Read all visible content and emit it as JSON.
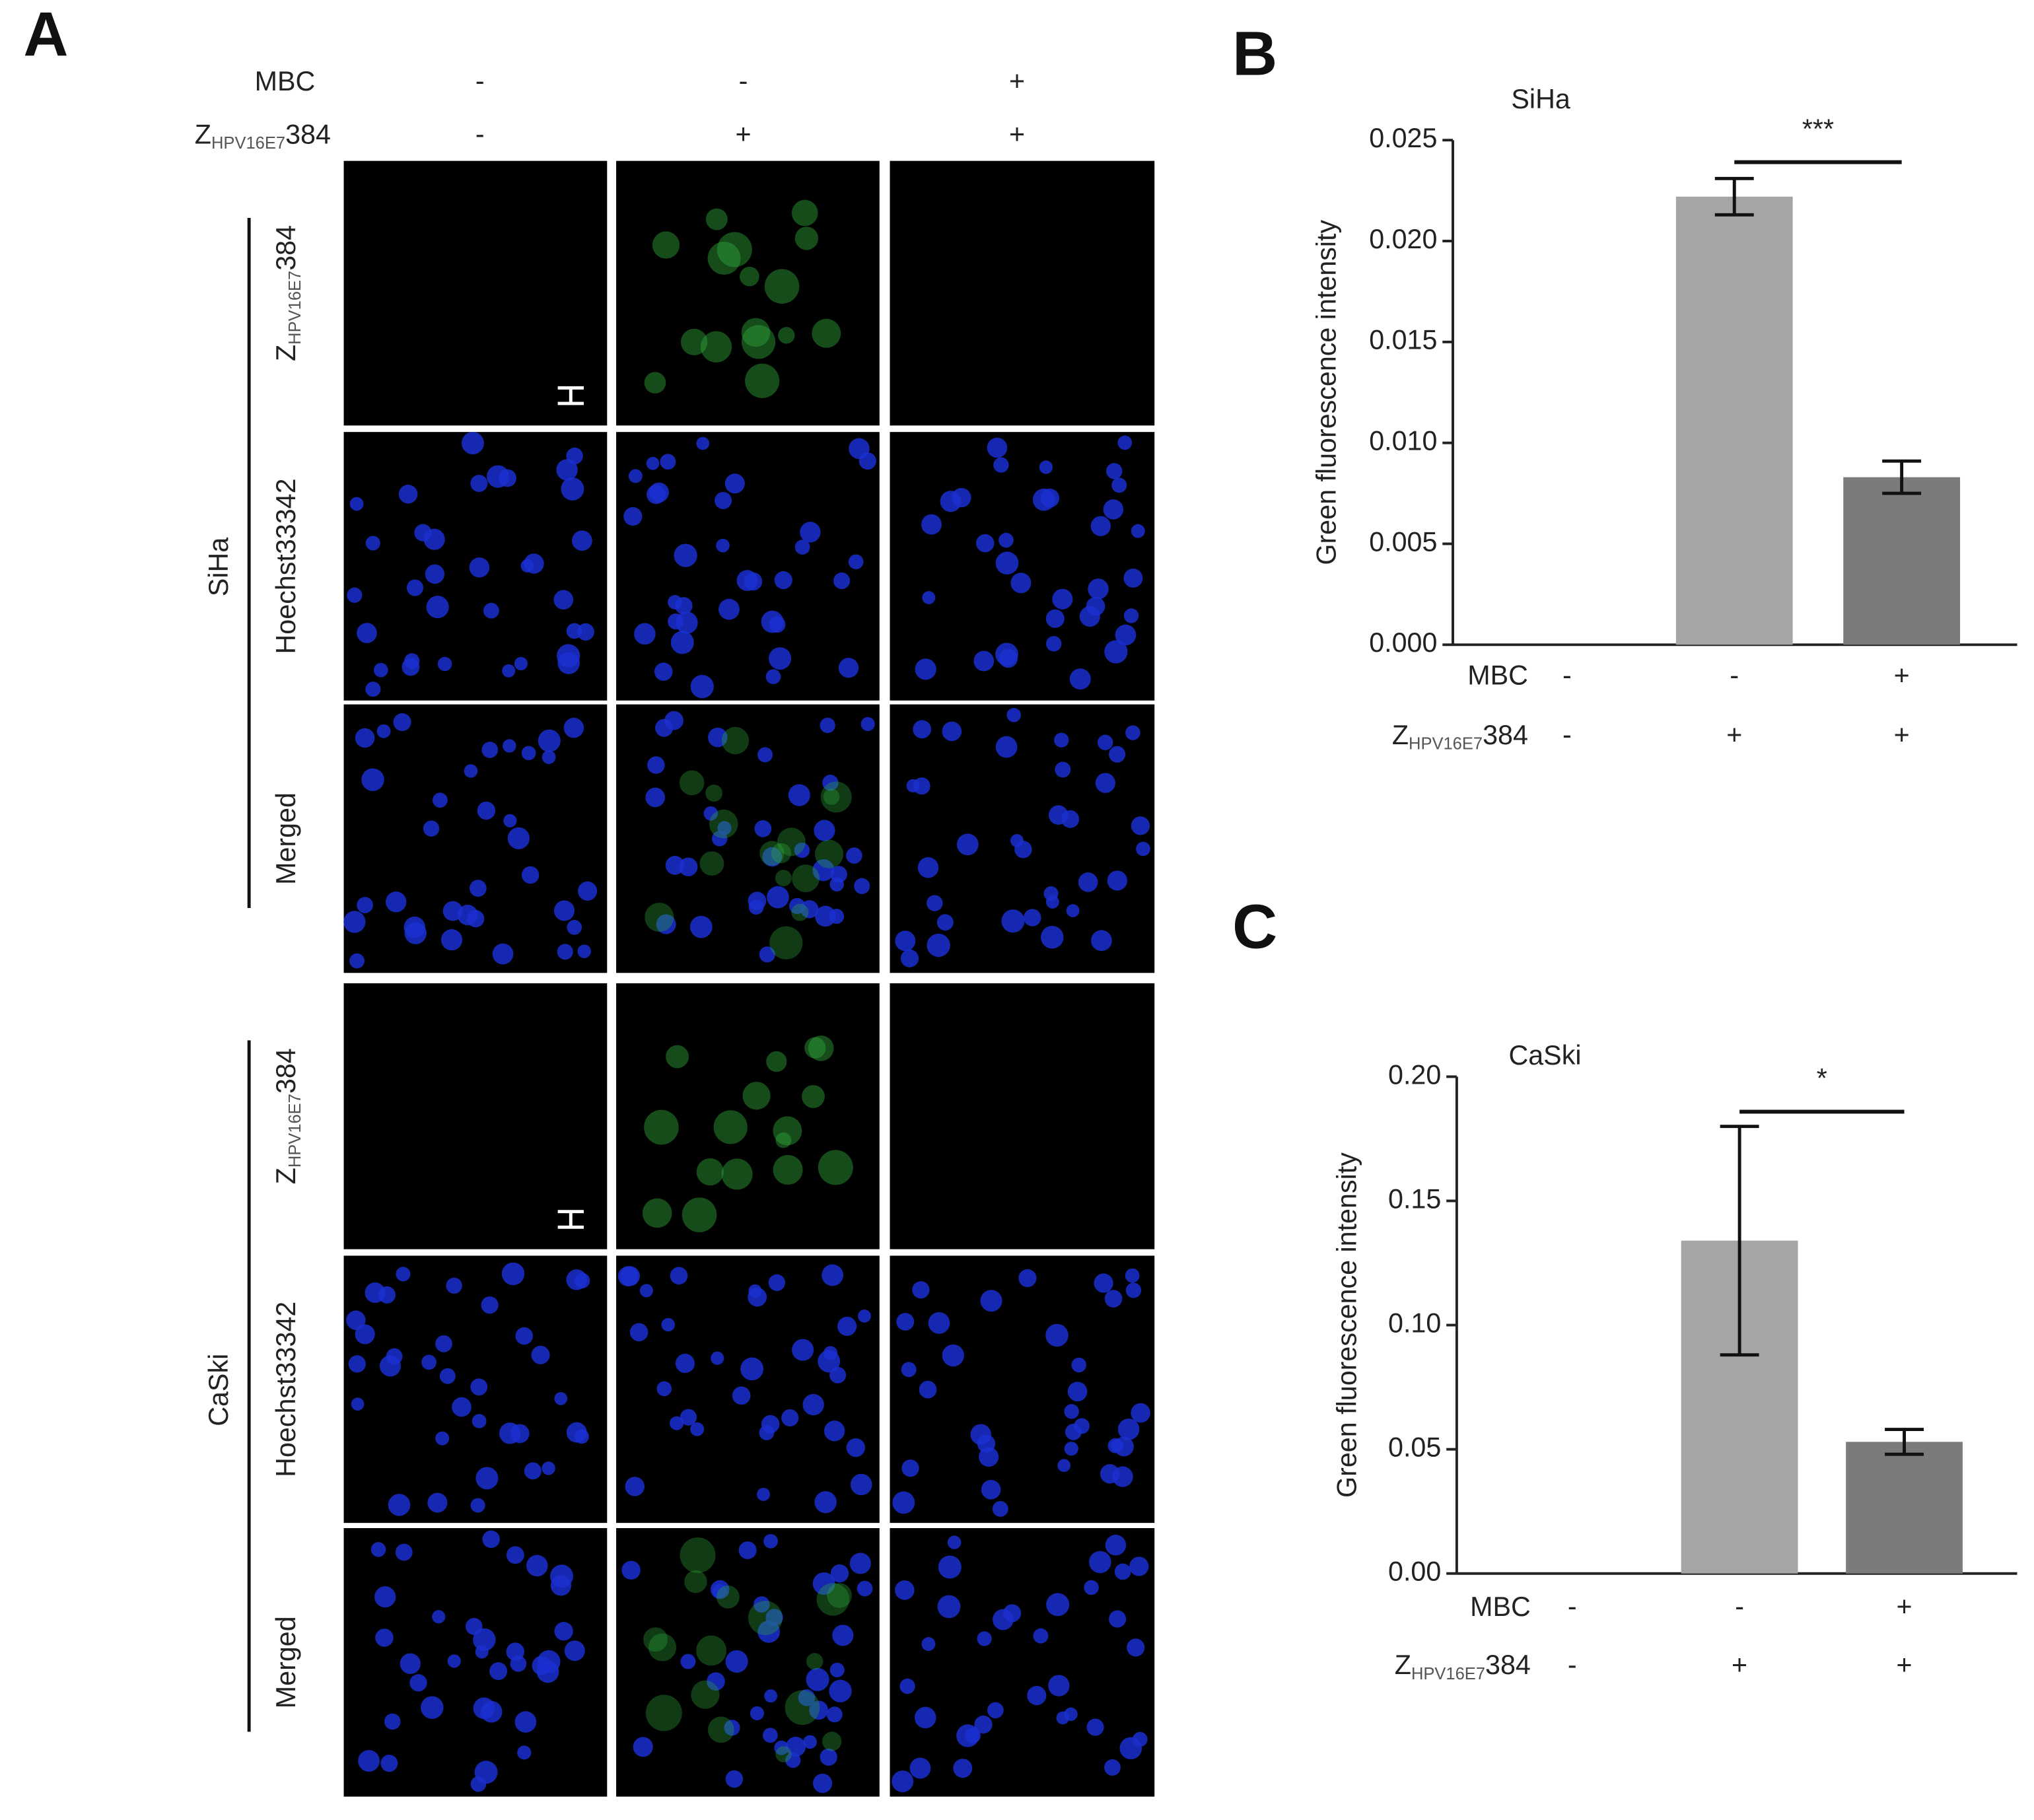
{
  "panel_a": {
    "label": "A",
    "headers": [
      {
        "name": {
          "main": "MBC"
        },
        "signs": [
          "-",
          "-",
          "+"
        ]
      },
      {
        "name": {
          "main": "Z",
          "sub": "HPV16E7",
          "tail": "384"
        },
        "signs": [
          "-",
          "+",
          "+"
        ]
      }
    ],
    "cell_lines": [
      {
        "name": "SiHa",
        "channels": [
          {
            "main": "Z",
            "sub": "HPV16E7",
            "tail": "384"
          },
          {
            "main": "Hoechst33342"
          },
          {
            "main": "Merged"
          }
        ]
      },
      {
        "name": "CaSki",
        "channels": [
          {
            "main": "Z",
            "sub": "HPV16E7",
            "tail": "384"
          },
          {
            "main": "Hoechst33342"
          },
          {
            "main": "Merged"
          }
        ]
      }
    ]
  },
  "chart_data": [
    {
      "type": "bar",
      "label": "B",
      "title": "SiHa",
      "ylabel": "Green fluorescence intensity",
      "categories": [
        null,
        null,
        null
      ],
      "values": [
        0,
        0.0222,
        0.0083
      ],
      "errors": [
        null,
        0.0009,
        0.0008
      ],
      "colors": [
        "#a0a0a0",
        "#a5a5a8",
        "#7b7b7d"
      ],
      "ylim": [
        0,
        0.025
      ],
      "yticks": [
        {
          "value": 0,
          "label": "0.000"
        },
        {
          "value": 0.005,
          "label": "0.005"
        },
        {
          "value": 0.01,
          "label": "0.010"
        },
        {
          "value": 0.015,
          "label": "0.015"
        },
        {
          "value": 0.02,
          "label": "0.020"
        },
        {
          "value": 0.025,
          "label": "0.025"
        }
      ],
      "significance": "***",
      "conditions": [
        {
          "name": {
            "main": "MBC"
          },
          "signs": [
            "-",
            "-",
            "+"
          ]
        },
        {
          "name": {
            "main": "Z",
            "sub": "HPV16E7",
            "tail": "384"
          },
          "signs": [
            "-",
            "+",
            "+"
          ]
        }
      ]
    },
    {
      "type": "bar",
      "label": "C",
      "title": "CaSki",
      "ylabel": "Green fluorescence intensity",
      "categories": [
        null,
        null,
        null
      ],
      "values": [
        0,
        0.134,
        0.053
      ],
      "errors": [
        null,
        0.046,
        0.005
      ],
      "colors": [
        "#a0a0a0",
        "#a5a5a8",
        "#7b7b7d"
      ],
      "ylim": [
        0,
        0.2
      ],
      "yticks": [
        {
          "value": 0,
          "label": "0.00"
        },
        0.05,
        {
          "value": 0.1,
          "label": "0.10"
        },
        0.15,
        {
          "value": 0.2,
          "label": "0.20"
        }
      ],
      "significance": "*",
      "conditions": [
        {
          "name": {
            "main": "MBC"
          },
          "signs": [
            "-",
            "-",
            "+"
          ]
        },
        {
          "name": {
            "main": "Z",
            "sub": "HPV16E7",
            "tail": "384"
          },
          "signs": [
            "-",
            "+",
            "+"
          ]
        }
      ]
    }
  ]
}
